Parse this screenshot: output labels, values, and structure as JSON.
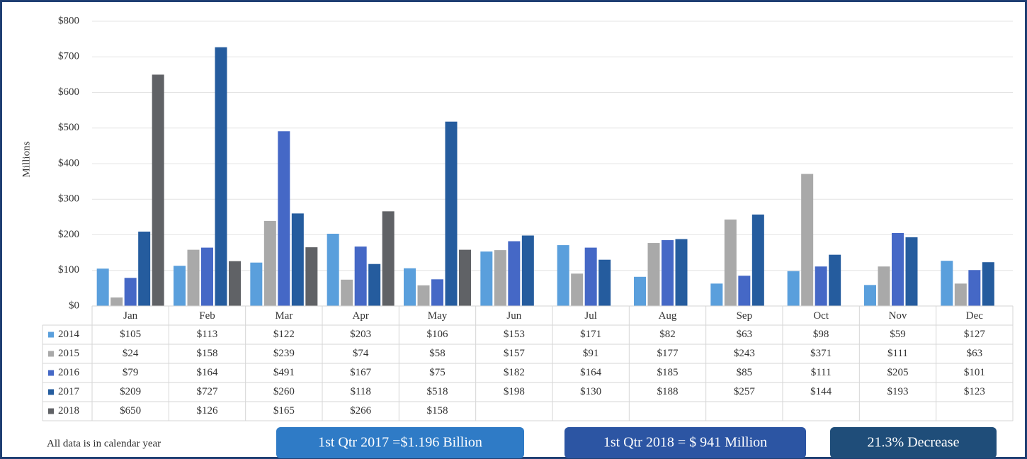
{
  "chart_data": {
    "type": "bar",
    "y_label": "Millions",
    "categories": [
      "Jan",
      "Feb",
      "Mar",
      "Apr",
      "May",
      "Jun",
      "Jul",
      "Aug",
      "Sep",
      "Oct",
      "Nov",
      "Dec"
    ],
    "series": [
      {
        "name": "2014",
        "color": "#5a9fdc",
        "values": [
          105,
          113,
          122,
          203,
          106,
          153,
          171,
          82,
          63,
          98,
          59,
          127
        ],
        "value_labels": [
          "$105",
          "$113",
          "$122",
          "$203",
          "$106",
          "$153",
          "$171",
          "$82",
          "$63",
          "$98",
          "$59",
          "$127"
        ]
      },
      {
        "name": "2015",
        "color": "#a9a9a9",
        "values": [
          24,
          158,
          239,
          74,
          58,
          157,
          91,
          177,
          243,
          371,
          111,
          63
        ],
        "value_labels": [
          "$24",
          "$158",
          "$239",
          "$74",
          "$58",
          "$157",
          "$91",
          "$177",
          "$243",
          "$371",
          "$111",
          "$63"
        ]
      },
      {
        "name": "2016",
        "color": "#4568c6",
        "values": [
          79,
          164,
          491,
          167,
          75,
          182,
          164,
          185,
          85,
          111,
          205,
          101
        ],
        "value_labels": [
          "$79",
          "$164",
          "$491",
          "$167",
          "$75",
          "$182",
          "$164",
          "$185",
          "$85",
          "$111",
          "$205",
          "$101"
        ]
      },
      {
        "name": "2017",
        "color": "#255c9e",
        "values": [
          209,
          727,
          260,
          118,
          518,
          198,
          130,
          188,
          257,
          144,
          193,
          123
        ],
        "value_labels": [
          "$209",
          "$727",
          "$260",
          "$118",
          "$518",
          "$198",
          "$130",
          "$188",
          "$257",
          "$144",
          "$193",
          "$123"
        ]
      },
      {
        "name": "2018",
        "color": "#606266",
        "values": [
          650,
          126,
          165,
          266,
          158,
          null,
          null,
          null,
          null,
          null,
          null,
          null
        ],
        "value_labels": [
          "$650",
          "$126",
          "$165",
          "$266",
          "$158",
          null,
          null,
          null,
          null,
          null,
          null,
          null
        ]
      }
    ],
    "ylim": [
      0,
      800
    ],
    "yticks": [
      {
        "value": 0,
        "label": "$0"
      },
      {
        "value": 100,
        "label": "$100"
      },
      {
        "value": 200,
        "label": "$200"
      },
      {
        "value": 300,
        "label": "$300"
      },
      {
        "value": 400,
        "label": "$400"
      },
      {
        "value": 500,
        "label": "$500"
      },
      {
        "value": 600,
        "label": "$600"
      },
      {
        "value": 700,
        "label": "$700"
      },
      {
        "value": 800,
        "label": "$800"
      }
    ],
    "grid": true,
    "footnote": "All data is in calendar year",
    "callouts": [
      {
        "text": "1st Qtr 2017 =$1.196 Billion",
        "color": "#2f7bc6"
      },
      {
        "text": "1st Qtr 2018 = $ 941 Million",
        "color": "#2c55a3"
      },
      {
        "text": "21.3% Decrease",
        "color": "#1f4d79"
      }
    ]
  }
}
